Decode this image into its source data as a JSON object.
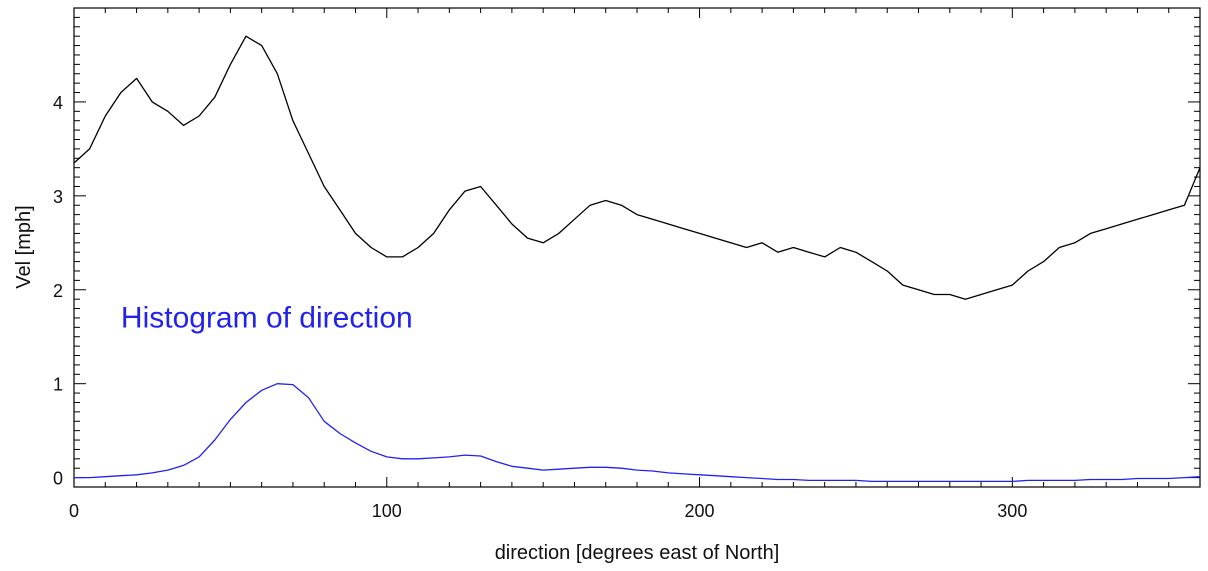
{
  "chart_data": {
    "type": "line",
    "title": "",
    "xlabel": "direction [degrees east of North]",
    "ylabel": "Vel [mph]",
    "xlim": [
      0,
      360
    ],
    "ylim": [
      -0.1,
      5.0
    ],
    "x_ticks": [
      0,
      100,
      200,
      300
    ],
    "x_tick_labels": [
      "0",
      "100",
      "200",
      "300"
    ],
    "y_ticks": [
      0,
      1,
      2,
      3,
      4
    ],
    "y_tick_labels": [
      "0",
      "1",
      "2",
      "3",
      "4"
    ],
    "grid": false,
    "annotation": {
      "text": "Histogram of direction",
      "color": "#2222ee",
      "x": 15,
      "y": 1.6
    },
    "series": [
      {
        "color": "#000000",
        "x": [
          0,
          5,
          10,
          15,
          20,
          25,
          30,
          35,
          40,
          45,
          50,
          55,
          60,
          65,
          70,
          75,
          80,
          85,
          90,
          95,
          100,
          105,
          110,
          115,
          120,
          125,
          130,
          135,
          140,
          145,
          150,
          155,
          160,
          165,
          170,
          175,
          180,
          185,
          190,
          195,
          200,
          205,
          210,
          215,
          220,
          225,
          230,
          235,
          240,
          245,
          250,
          255,
          260,
          265,
          270,
          275,
          280,
          285,
          290,
          295,
          300,
          305,
          310,
          315,
          320,
          325,
          330,
          335,
          340,
          345,
          350,
          355,
          360
        ],
        "values": [
          3.35,
          3.5,
          3.85,
          4.1,
          4.25,
          4.0,
          3.9,
          3.75,
          3.85,
          4.05,
          4.4,
          4.7,
          4.6,
          4.3,
          3.8,
          3.45,
          3.1,
          2.85,
          2.6,
          2.45,
          2.35,
          2.35,
          2.45,
          2.6,
          2.85,
          3.05,
          3.1,
          2.9,
          2.7,
          2.55,
          2.5,
          2.6,
          2.75,
          2.9,
          2.95,
          2.9,
          2.8,
          2.75,
          2.7,
          2.65,
          2.6,
          2.55,
          2.5,
          2.45,
          2.5,
          2.4,
          2.45,
          2.4,
          2.35,
          2.45,
          2.4,
          2.3,
          2.2,
          2.05,
          2.0,
          1.95,
          1.95,
          1.9,
          1.95,
          2.0,
          2.05,
          2.2,
          2.3,
          2.45,
          2.5,
          2.6,
          2.65,
          2.7,
          2.75,
          2.8,
          2.85,
          2.9,
          3.3
        ]
      },
      {
        "color": "#2222ee",
        "x": [
          0,
          5,
          10,
          15,
          20,
          25,
          30,
          35,
          40,
          45,
          50,
          55,
          60,
          65,
          70,
          75,
          80,
          85,
          90,
          95,
          100,
          105,
          110,
          115,
          120,
          125,
          130,
          135,
          140,
          145,
          150,
          155,
          160,
          165,
          170,
          175,
          180,
          185,
          190,
          195,
          200,
          205,
          210,
          215,
          220,
          225,
          230,
          235,
          240,
          245,
          250,
          255,
          260,
          265,
          270,
          275,
          280,
          285,
          290,
          295,
          300,
          305,
          310,
          315,
          320,
          325,
          330,
          335,
          340,
          345,
          350,
          355,
          360
        ],
        "values": [
          0.0,
          0.0,
          0.01,
          0.02,
          0.03,
          0.05,
          0.08,
          0.13,
          0.22,
          0.4,
          0.62,
          0.8,
          0.93,
          1.0,
          0.99,
          0.85,
          0.6,
          0.47,
          0.37,
          0.28,
          0.22,
          0.2,
          0.2,
          0.21,
          0.22,
          0.24,
          0.23,
          0.17,
          0.12,
          0.1,
          0.08,
          0.09,
          0.1,
          0.11,
          0.11,
          0.1,
          0.08,
          0.07,
          0.05,
          0.04,
          0.03,
          0.02,
          0.01,
          0.0,
          -0.01,
          -0.02,
          -0.02,
          -0.03,
          -0.03,
          -0.03,
          -0.03,
          -0.04,
          -0.04,
          -0.04,
          -0.04,
          -0.04,
          -0.04,
          -0.04,
          -0.04,
          -0.04,
          -0.04,
          -0.03,
          -0.03,
          -0.03,
          -0.03,
          -0.02,
          -0.02,
          -0.02,
          -0.01,
          -0.01,
          -0.01,
          0.0,
          0.01
        ]
      }
    ]
  }
}
